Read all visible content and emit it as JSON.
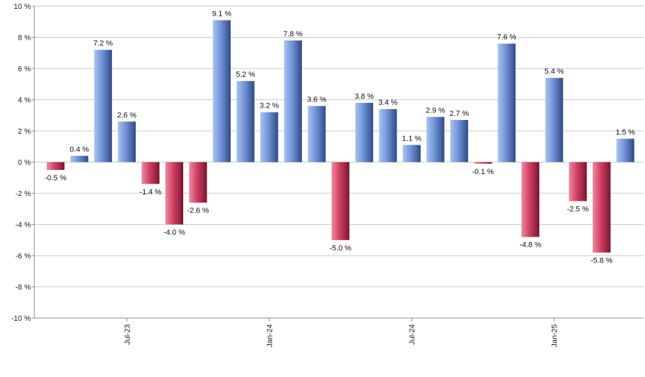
{
  "chart_data": {
    "type": "bar",
    "title": "",
    "xlabel": "",
    "ylabel": "",
    "ylim": [
      -10,
      10
    ],
    "y_ticks": [
      10,
      8,
      6,
      4,
      2,
      0,
      -2,
      -4,
      -6,
      -8,
      -10
    ],
    "y_tick_labels": [
      "10 %",
      "8 %",
      "6 %",
      "4 %",
      "2 %",
      "0 %",
      "-2 %",
      "-4 %",
      "-6 %",
      "-8 %",
      "-10 %"
    ],
    "grid": "horizontal",
    "legend": "none",
    "values": [
      -0.5,
      0.4,
      7.2,
      2.6,
      -1.4,
      -4.0,
      -2.6,
      9.1,
      5.2,
      3.2,
      7.8,
      3.6,
      -5.0,
      3.8,
      3.4,
      1.1,
      2.9,
      2.7,
      -0.1,
      7.6,
      -4.8,
      5.4,
      -2.5,
      -5.8,
      1.5
    ],
    "value_labels": [
      "-0.5 %",
      "0.4 %",
      "7.2 %",
      "2.6 %",
      "-1.4 %",
      "-4.0 %",
      "-2.6 %",
      "9.1 %",
      "5.2 %",
      "3.2 %",
      "7.8 %",
      "3.6 %",
      "-5.0 %",
      "3.8 %",
      "3.4 %",
      "1.1 %",
      "2.9 %",
      "2.7 %",
      "-0.1 %",
      "7.6 %",
      "-4.8 %",
      "5.4 %",
      "-2.5 %",
      "-5.8 %",
      "1.5 %"
    ],
    "x_ticks": [
      {
        "label": "Jul-23",
        "bar_index": 3
      },
      {
        "label": "Jan-24",
        "bar_index": 9
      },
      {
        "label": "Jul-24",
        "bar_index": 15
      },
      {
        "label": "Jan-25",
        "bar_index": 21
      }
    ],
    "colors": {
      "positive_light": "#a9c3f2",
      "positive_mid": "#6f93d6",
      "positive_dark": "#2f4a86",
      "negative_light": "#f08aa0",
      "negative_mid": "#cf3f62",
      "negative_dark": "#7a1630",
      "grid": "#c8c8c8",
      "axis": "#888888"
    }
  }
}
